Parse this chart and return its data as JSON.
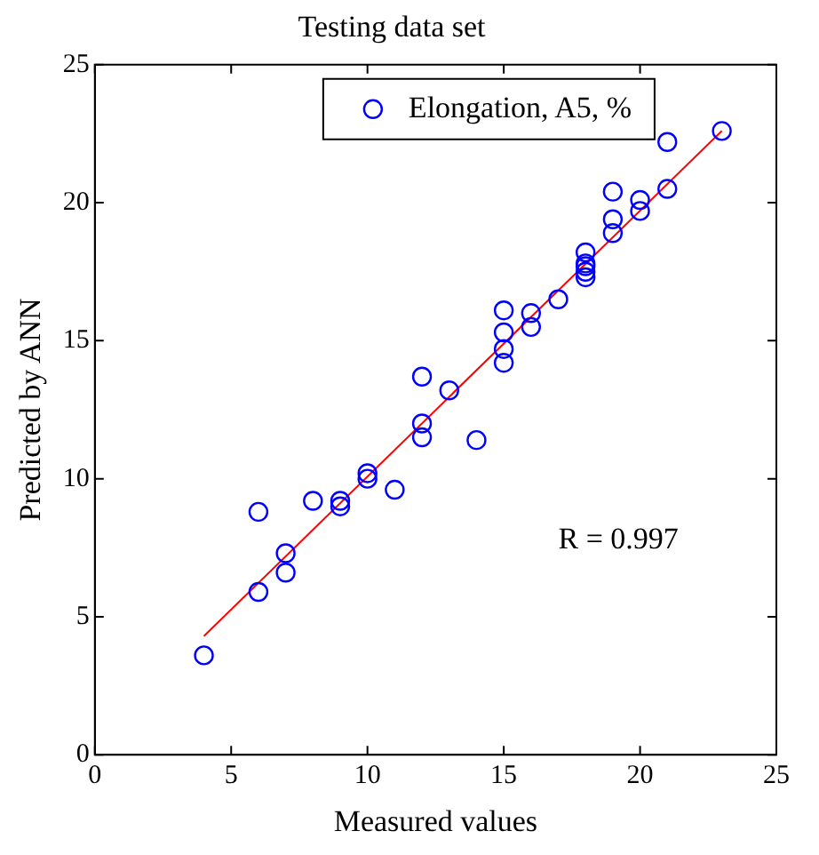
{
  "chart_data": {
    "type": "scatter",
    "title": "Testing data set",
    "xlabel": "Measured values",
    "ylabel": "Predicted by ANN",
    "xlim": [
      0,
      25
    ],
    "ylim": [
      0,
      25
    ],
    "xticks": [
      0,
      5,
      10,
      15,
      20,
      25
    ],
    "yticks": [
      0,
      5,
      10,
      15,
      20,
      25
    ],
    "grid": false,
    "legend": "top",
    "marker": "circle",
    "series": [
      {
        "name": "Elongation, A5, %",
        "type": "scatter",
        "color": "#0000ff",
        "x": [
          4,
          6,
          6,
          7,
          7,
          8,
          9,
          9,
          10,
          10,
          11,
          12,
          12,
          12,
          13,
          14,
          15,
          15,
          15,
          15,
          16,
          16,
          17,
          18,
          18,
          18,
          18,
          18,
          19,
          19,
          19,
          20,
          20,
          21,
          21,
          23
        ],
        "values": [
          3.6,
          5.9,
          8.8,
          7.3,
          6.6,
          9.2,
          9.0,
          9.2,
          10.0,
          10.2,
          9.6,
          11.5,
          12.0,
          13.7,
          13.2,
          11.4,
          14.2,
          14.7,
          15.3,
          16.1,
          15.5,
          16.0,
          16.5,
          17.3,
          17.5,
          17.7,
          17.8,
          18.2,
          18.9,
          19.4,
          20.4,
          19.7,
          20.1,
          20.5,
          22.2,
          22.6
        ]
      },
      {
        "type": "line",
        "marker": "none",
        "color": "#ff0000",
        "x": [
          4,
          23
        ],
        "values": [
          4.3,
          22.6
        ]
      }
    ],
    "annotations": [
      "R = 0.997"
    ]
  }
}
